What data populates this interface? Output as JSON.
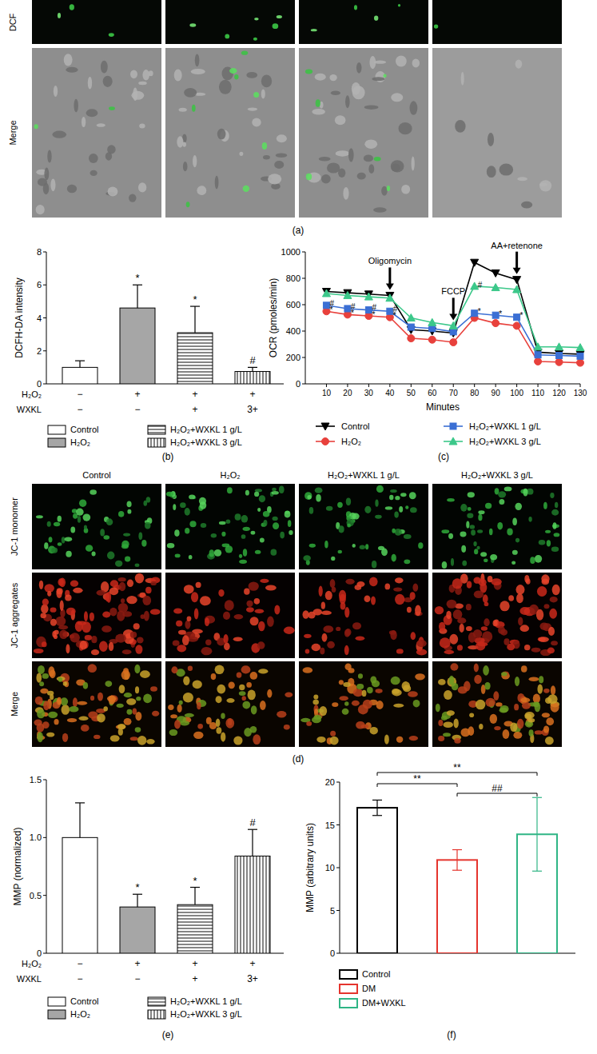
{
  "figure": {
    "panel_a": {
      "label": "(a)",
      "row_labels": [
        "DCF",
        "Merge"
      ]
    },
    "panel_d": {
      "label": "(d)",
      "column_labels": [
        "Control",
        "H₂O₂",
        "H₂O₂+WXKL 1 g/L",
        "H₂O₂+WXKL 3 g/L"
      ],
      "row_labels": [
        "JC-1 monomer",
        "JC-1 aggregates",
        "Merge"
      ]
    }
  },
  "chart_data": [
    {
      "type": "bar",
      "panel_label": "(b)",
      "y_label": "DCFH-DA intensity",
      "categories": [
        "Control",
        "H₂O₂",
        "H₂O₂+WXKL 1 g/L",
        "H₂O₂+WXKL 3 g/L"
      ],
      "values": [
        1.0,
        4.6,
        3.1,
        0.75
      ],
      "errors": [
        0.4,
        1.4,
        1.6,
        0.25
      ],
      "significance": [
        null,
        "*",
        "*",
        "#"
      ],
      "colors": [
        "#ffffff",
        "#a6a6a6",
        "#ffffff",
        "#ffffff"
      ],
      "ylim": [
        0,
        8
      ],
      "yticks": [
        0,
        2,
        4,
        6,
        8
      ],
      "tick_labels": "y",
      "legend": "bottom",
      "treatment_table": [
        {
          "label": "H₂O₂",
          "cells": [
            "−",
            "+",
            "+",
            "+"
          ]
        },
        {
          "label": "WXKL",
          "cells": [
            "−",
            "−",
            "+",
            "3+"
          ]
        }
      ]
    },
    {
      "type": "line",
      "panel_label": "(c)",
      "x_label": "Minutes",
      "y_label": "OCR (pmoles/min)",
      "x": [
        10,
        20,
        30,
        40,
        50,
        60,
        70,
        80,
        90,
        100,
        110,
        120,
        130
      ],
      "series": [
        {
          "name": "Control",
          "color": "#000000",
          "marker": "triangle-down",
          "values": [
            700,
            690,
            680,
            670,
            410,
            400,
            385,
            920,
            840,
            790,
            240,
            230,
            225
          ]
        },
        {
          "name": "H₂O₂",
          "color": "#e8413c",
          "marker": "circle",
          "values": [
            550,
            525,
            515,
            505,
            345,
            335,
            315,
            500,
            460,
            440,
            170,
            165,
            160
          ]
        },
        {
          "name": "H₂O₂+WXKL 1 g/L",
          "color": "#3b6fd4",
          "marker": "square",
          "values": [
            595,
            570,
            560,
            550,
            430,
            420,
            395,
            535,
            520,
            505,
            220,
            215,
            210
          ]
        },
        {
          "name": "H₂O₂+WXKL 3 g/L",
          "color": "#3cc88a",
          "marker": "triangle-up",
          "values": [
            685,
            670,
            660,
            650,
            500,
            465,
            440,
            740,
            730,
            715,
            280,
            280,
            275
          ]
        }
      ],
      "xlim": [
        0,
        130
      ],
      "xticks": [
        10,
        20,
        30,
        40,
        50,
        60,
        70,
        80,
        90,
        100,
        110,
        120,
        130
      ],
      "ylim": [
        0,
        1000
      ],
      "yticks": [
        0,
        200,
        400,
        600,
        800,
        1000
      ],
      "events": [
        {
          "label": "Oligomycin",
          "x": 40
        },
        {
          "label": "FCCP",
          "x": 70
        },
        {
          "label": "AA+retenone",
          "x": 100
        }
      ],
      "annotations": [
        {
          "text": "#",
          "x": 10,
          "y": 615
        },
        {
          "text": "*",
          "x": 10,
          "y": 565
        },
        {
          "text": "#",
          "x": 20,
          "y": 590
        },
        {
          "text": "*",
          "x": 20,
          "y": 540
        },
        {
          "text": "#",
          "x": 30,
          "y": 580
        },
        {
          "text": "*",
          "x": 30,
          "y": 530
        },
        {
          "text": "#",
          "x": 40,
          "y": 570
        },
        {
          "text": "*",
          "x": 40,
          "y": 520
        },
        {
          "text": "#",
          "x": 80,
          "y": 750
        },
        {
          "text": "*",
          "x": 80,
          "y": 550
        },
        {
          "text": "*",
          "x": 90,
          "y": 535
        },
        {
          "text": "*",
          "x": 100,
          "y": 520
        }
      ],
      "legend": "bottom"
    },
    {
      "type": "bar",
      "panel_label": "(e)",
      "y_label": "MMP (normalized)",
      "categories": [
        "Control",
        "H₂O₂",
        "H₂O₂+WXKL 1 g/L",
        "H₂O₂+WXKL 3 g/L"
      ],
      "values": [
        1.0,
        0.4,
        0.42,
        0.84
      ],
      "errors": [
        0.3,
        0.11,
        0.15,
        0.23
      ],
      "significance": [
        null,
        "*",
        "*",
        "#"
      ],
      "colors": [
        "#ffffff",
        "#a6a6a6",
        "#ffffff",
        "#ffffff"
      ],
      "ylim": [
        0,
        1.5
      ],
      "yticks": [
        0,
        0.5,
        {
          "value": 1,
          "label": "1.0"
        },
        1.5
      ],
      "tick_labels": "y",
      "legend": "bottom",
      "treatment_table": [
        {
          "label": "H₂O₂",
          "cells": [
            "−",
            "+",
            "+",
            "+"
          ]
        },
        {
          "label": "WXKL",
          "cells": [
            "−",
            "−",
            "+",
            "3+"
          ]
        }
      ]
    },
    {
      "type": "bar",
      "panel_label": "(f)",
      "y_label": "MMP (arbitrary units)",
      "categories": [
        "Control",
        "DM",
        "DM+WXKL"
      ],
      "values": [
        17.0,
        10.9,
        13.9
      ],
      "errors": [
        0.9,
        1.2,
        4.3
      ],
      "colors": [
        "#000000",
        "#e5342d",
        "#2fb585"
      ],
      "ylim": [
        0,
        20
      ],
      "yticks": [
        0,
        5,
        10,
        15,
        20
      ],
      "tick_labels": "y",
      "legend": "bottom",
      "comparisons": [
        {
          "from": 0,
          "to": 1,
          "label": "**"
        },
        {
          "from": 1,
          "to": 2,
          "label": "##"
        },
        {
          "from": 0,
          "to": 2,
          "label": "**"
        }
      ]
    }
  ]
}
